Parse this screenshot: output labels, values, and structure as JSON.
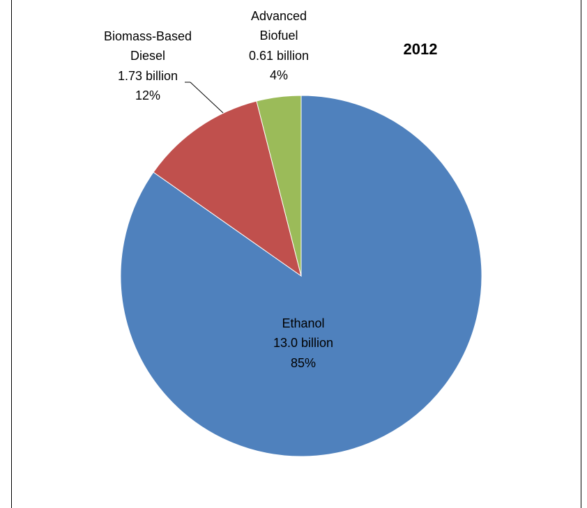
{
  "chart_data": {
    "type": "pie",
    "title": "2012",
    "slices": [
      {
        "label": "Ethanol",
        "value_text": "13.0 billion",
        "value": 13.0,
        "percent": 85,
        "percent_text": "85%",
        "color": "#4f81bd"
      },
      {
        "label": "Biomass-Based Diesel",
        "label_lines": [
          "Biomass-Based",
          "Diesel"
        ],
        "value_text": "1.73 billion",
        "value": 1.73,
        "percent": 12,
        "percent_text": "12%",
        "color": "#c0504d"
      },
      {
        "label": "Advanced Biofuel",
        "label_lines": [
          "Advanced",
          "Biofuel"
        ],
        "value_text": "0.61 billion",
        "value": 0.61,
        "percent": 4,
        "percent_text": "4%",
        "color": "#9bbb59"
      }
    ],
    "legend": "none"
  }
}
